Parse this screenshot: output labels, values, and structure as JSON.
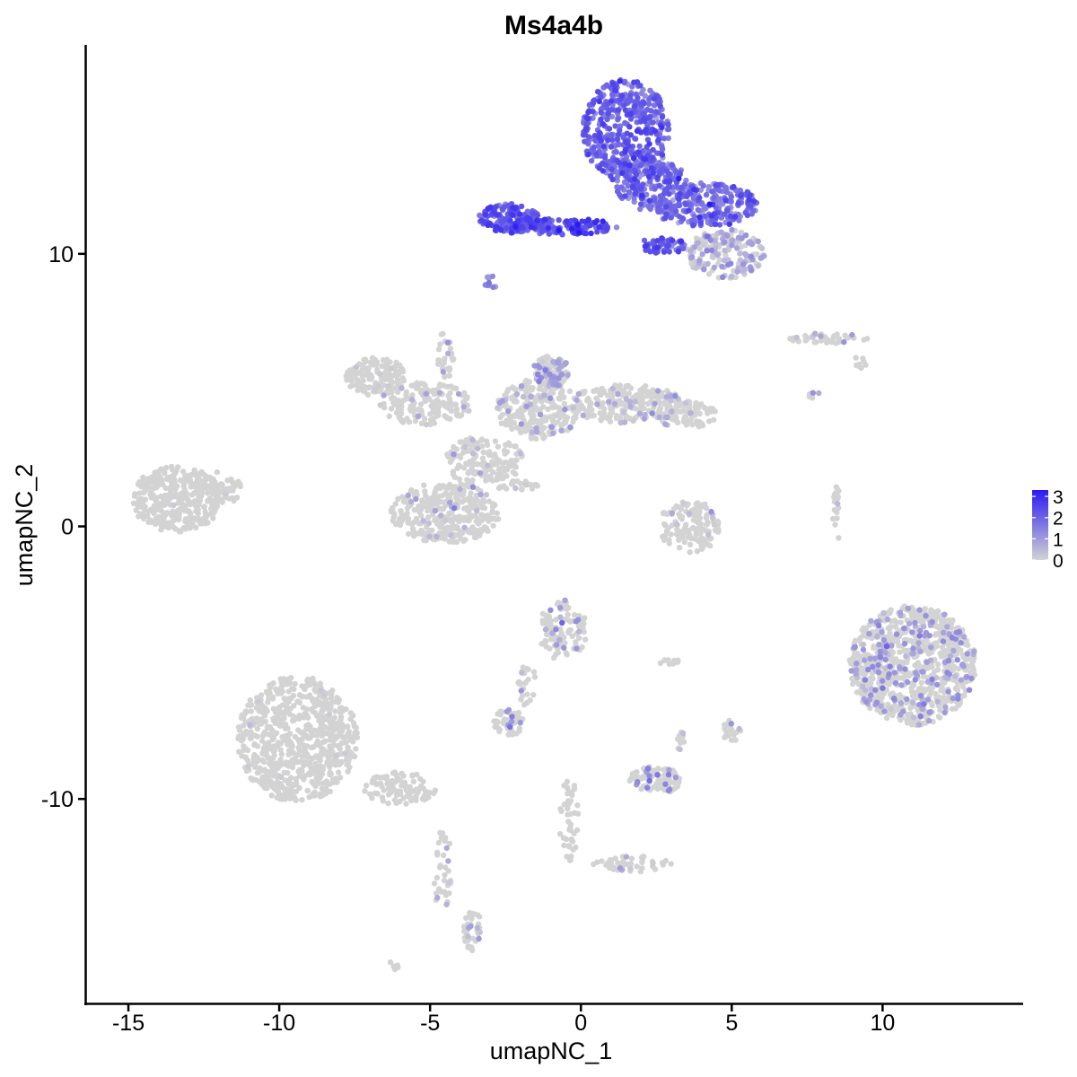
{
  "chart_data": {
    "type": "scatter",
    "title": "Ms4a4b",
    "xlabel": "umapNC_1",
    "ylabel": "umapNC_2",
    "xlim": [
      -16.4,
      14.6
    ],
    "ylim": [
      -17.5,
      17.6
    ],
    "x_ticks": [
      -15,
      -10,
      -5,
      0,
      5,
      10
    ],
    "x_tick_labels": [
      "-15",
      "-10",
      "-5",
      "0",
      "5",
      "10"
    ],
    "y_ticks": [
      -10,
      0,
      10
    ],
    "y_tick_labels": [
      "-10",
      "0",
      "10"
    ],
    "grid": false,
    "legend_position": "right",
    "colorbar": {
      "min": 0,
      "max": 3.3,
      "ticks": [
        0,
        1,
        2,
        3
      ],
      "tick_labels": [
        "0",
        "1",
        "2",
        "3"
      ],
      "low_color": "#d3d3d3",
      "high_color": "#2b1bf2"
    },
    "clusters": [
      {
        "cx": 1.5,
        "cy": 14.5,
        "rx": 1.45,
        "ry": 1.9,
        "n": 420,
        "expr_mean": 1.9,
        "expr_sd": 0.45,
        "expr_frac": 1.0
      },
      {
        "cx": 2.3,
        "cy": 12.6,
        "rx": 1.2,
        "ry": 1.0,
        "n": 200,
        "expr_mean": 1.8,
        "expr_sd": 0.5,
        "expr_frac": 1.0
      },
      {
        "cx": 4.1,
        "cy": 11.8,
        "rx": 1.8,
        "ry": 0.8,
        "n": 260,
        "expr_mean": 1.65,
        "expr_sd": 0.5,
        "expr_frac": 1.0
      },
      {
        "cx": 4.8,
        "cy": 10.0,
        "rx": 1.3,
        "ry": 0.9,
        "n": 180,
        "expr_mean": 0.6,
        "expr_sd": 0.5,
        "expr_frac": 0.6
      },
      {
        "cx": -2.4,
        "cy": 11.3,
        "rx": 1.0,
        "ry": 0.55,
        "n": 160,
        "expr_mean": 2.1,
        "expr_sd": 0.45,
        "expr_frac": 1.0
      },
      {
        "cx": -0.6,
        "cy": 11.0,
        "rx": 1.8,
        "ry": 0.3,
        "n": 140,
        "expr_mean": 2.2,
        "expr_sd": 0.45,
        "expr_frac": 1.0
      },
      {
        "cx": 2.7,
        "cy": 10.3,
        "rx": 0.8,
        "ry": 0.3,
        "n": 50,
        "expr_mean": 2.0,
        "expr_sd": 0.45,
        "expr_frac": 1.0
      },
      {
        "cx": -3.0,
        "cy": 8.9,
        "rx": 0.2,
        "ry": 0.3,
        "n": 10,
        "expr_mean": 1.1,
        "expr_sd": 0.4,
        "expr_frac": 0.8
      },
      {
        "cx": -13.4,
        "cy": 1.0,
        "rx": 1.5,
        "ry": 1.2,
        "n": 330,
        "expr_mean": 0.0,
        "expr_sd": 0.3,
        "expr_frac": 0.01
      },
      {
        "cx": -12.0,
        "cy": 1.4,
        "rx": 0.8,
        "ry": 0.6,
        "n": 60,
        "expr_mean": 0.0,
        "expr_sd": 0.3,
        "expr_frac": 0.02
      },
      {
        "cx": -6.8,
        "cy": 5.5,
        "rx": 1.0,
        "ry": 0.7,
        "n": 140,
        "expr_mean": 0.0,
        "expr_sd": 0.3,
        "expr_frac": 0.02
      },
      {
        "cx": -5.2,
        "cy": 4.5,
        "rx": 1.6,
        "ry": 0.8,
        "n": 160,
        "expr_mean": 0.4,
        "expr_sd": 0.3,
        "expr_frac": 0.06
      },
      {
        "cx": -4.5,
        "cy": 0.5,
        "rx": 1.8,
        "ry": 1.1,
        "n": 360,
        "expr_mean": 0.6,
        "expr_sd": 0.3,
        "expr_frac": 0.05
      },
      {
        "cx": -3.2,
        "cy": 2.4,
        "rx": 1.3,
        "ry": 0.9,
        "n": 150,
        "expr_mean": 0.6,
        "expr_sd": 0.3,
        "expr_frac": 0.06
      },
      {
        "cx": -1.4,
        "cy": 4.3,
        "rx": 1.4,
        "ry": 1.1,
        "n": 250,
        "expr_mean": 0.7,
        "expr_sd": 0.3,
        "expr_frac": 0.12
      },
      {
        "cx": -1.0,
        "cy": 5.7,
        "rx": 0.6,
        "ry": 0.6,
        "n": 110,
        "expr_mean": 0.9,
        "expr_sd": 0.3,
        "expr_frac": 0.35
      },
      {
        "cx": 1.5,
        "cy": 4.5,
        "rx": 1.9,
        "ry": 0.7,
        "n": 230,
        "expr_mean": 0.7,
        "expr_sd": 0.3,
        "expr_frac": 0.12
      },
      {
        "cx": 3.5,
        "cy": 4.1,
        "rx": 1.0,
        "ry": 0.5,
        "n": 80,
        "expr_mean": 0.6,
        "expr_sd": 0.3,
        "expr_frac": 0.1
      },
      {
        "cx": -4.5,
        "cy": 6.3,
        "rx": 0.3,
        "ry": 0.9,
        "n": 30,
        "expr_mean": 0.8,
        "expr_sd": 0.3,
        "expr_frac": 0.1
      },
      {
        "cx": -2.2,
        "cy": 1.5,
        "rx": 0.9,
        "ry": 0.2,
        "n": 25,
        "expr_mean": 0.6,
        "expr_sd": 0.3,
        "expr_frac": 0.05
      },
      {
        "cx": 3.6,
        "cy": 0.0,
        "rx": 1.0,
        "ry": 1.0,
        "n": 130,
        "expr_mean": 0.5,
        "expr_sd": 0.3,
        "expr_frac": 0.05
      },
      {
        "cx": 8.3,
        "cy": 6.9,
        "rx": 1.4,
        "ry": 0.2,
        "n": 40,
        "expr_mean": 0.8,
        "expr_sd": 0.3,
        "expr_frac": 0.15
      },
      {
        "cx": 8.5,
        "cy": 0.5,
        "rx": 0.15,
        "ry": 1.0,
        "n": 20,
        "expr_mean": 0.6,
        "expr_sd": 0.3,
        "expr_frac": 0.1
      },
      {
        "cx": 11.0,
        "cy": -5.1,
        "rx": 2.1,
        "ry": 2.2,
        "n": 850,
        "expr_mean": 0.9,
        "expr_sd": 0.3,
        "expr_frac": 0.2
      },
      {
        "cx": -0.6,
        "cy": -3.8,
        "rx": 0.8,
        "ry": 1.1,
        "n": 110,
        "expr_mean": 0.9,
        "expr_sd": 0.4,
        "expr_frac": 0.12
      },
      {
        "cx": -1.8,
        "cy": -5.8,
        "rx": 0.3,
        "ry": 0.8,
        "n": 25,
        "expr_mean": 0.6,
        "expr_sd": 0.3,
        "expr_frac": 0.05
      },
      {
        "cx": -2.4,
        "cy": -7.2,
        "rx": 0.5,
        "ry": 0.5,
        "n": 50,
        "expr_mean": 1.1,
        "expr_sd": 0.4,
        "expr_frac": 0.15
      },
      {
        "cx": 2.5,
        "cy": -9.3,
        "rx": 0.9,
        "ry": 0.5,
        "n": 90,
        "expr_mean": 1.3,
        "expr_sd": 0.4,
        "expr_frac": 0.15
      },
      {
        "cx": 3.3,
        "cy": -7.8,
        "rx": 0.15,
        "ry": 0.4,
        "n": 12,
        "expr_mean": 0.6,
        "expr_sd": 0.3,
        "expr_frac": 0.1
      },
      {
        "cx": 5.0,
        "cy": -7.5,
        "rx": 0.3,
        "ry": 0.4,
        "n": 20,
        "expr_mean": 0.6,
        "expr_sd": 0.3,
        "expr_frac": 0.1
      },
      {
        "cx": 3.0,
        "cy": -5.0,
        "rx": 0.4,
        "ry": 0.15,
        "n": 10,
        "expr_mean": 0.6,
        "expr_sd": 0.3,
        "expr_frac": 0.1
      },
      {
        "cx": -9.4,
        "cy": -7.8,
        "rx": 2.0,
        "ry": 2.3,
        "n": 720,
        "expr_mean": 0.0,
        "expr_sd": 0.3,
        "expr_frac": 0.02
      },
      {
        "cx": -6.0,
        "cy": -9.6,
        "rx": 1.2,
        "ry": 0.6,
        "n": 100,
        "expr_mean": 0.0,
        "expr_sd": 0.3,
        "expr_frac": 0.02
      },
      {
        "cx": -4.6,
        "cy": -12.5,
        "rx": 0.3,
        "ry": 1.6,
        "n": 35,
        "expr_mean": 0.6,
        "expr_sd": 0.3,
        "expr_frac": 0.1
      },
      {
        "cx": -3.6,
        "cy": -14.8,
        "rx": 0.3,
        "ry": 0.8,
        "n": 40,
        "expr_mean": 0.8,
        "expr_sd": 0.3,
        "expr_frac": 0.2
      },
      {
        "cx": -0.4,
        "cy": -10.8,
        "rx": 0.35,
        "ry": 1.6,
        "n": 45,
        "expr_mean": 0.5,
        "expr_sd": 0.3,
        "expr_frac": 0.05
      },
      {
        "cx": 1.8,
        "cy": -12.4,
        "rx": 1.4,
        "ry": 0.3,
        "n": 50,
        "expr_mean": 0.5,
        "expr_sd": 0.3,
        "expr_frac": 0.04
      },
      {
        "cx": -6.2,
        "cy": -16.1,
        "rx": 0.2,
        "ry": 0.15,
        "n": 6,
        "expr_mean": 0.0,
        "expr_sd": 0.3,
        "expr_frac": 0.0
      },
      {
        "cx": 7.7,
        "cy": 4.9,
        "rx": 0.2,
        "ry": 0.2,
        "n": 6,
        "expr_mean": 1.0,
        "expr_sd": 0.3,
        "expr_frac": 0.5
      },
      {
        "cx": 9.2,
        "cy": 6.0,
        "rx": 0.3,
        "ry": 0.2,
        "n": 8,
        "expr_mean": 0.2,
        "expr_sd": 0.3,
        "expr_frac": 0.05
      }
    ]
  }
}
